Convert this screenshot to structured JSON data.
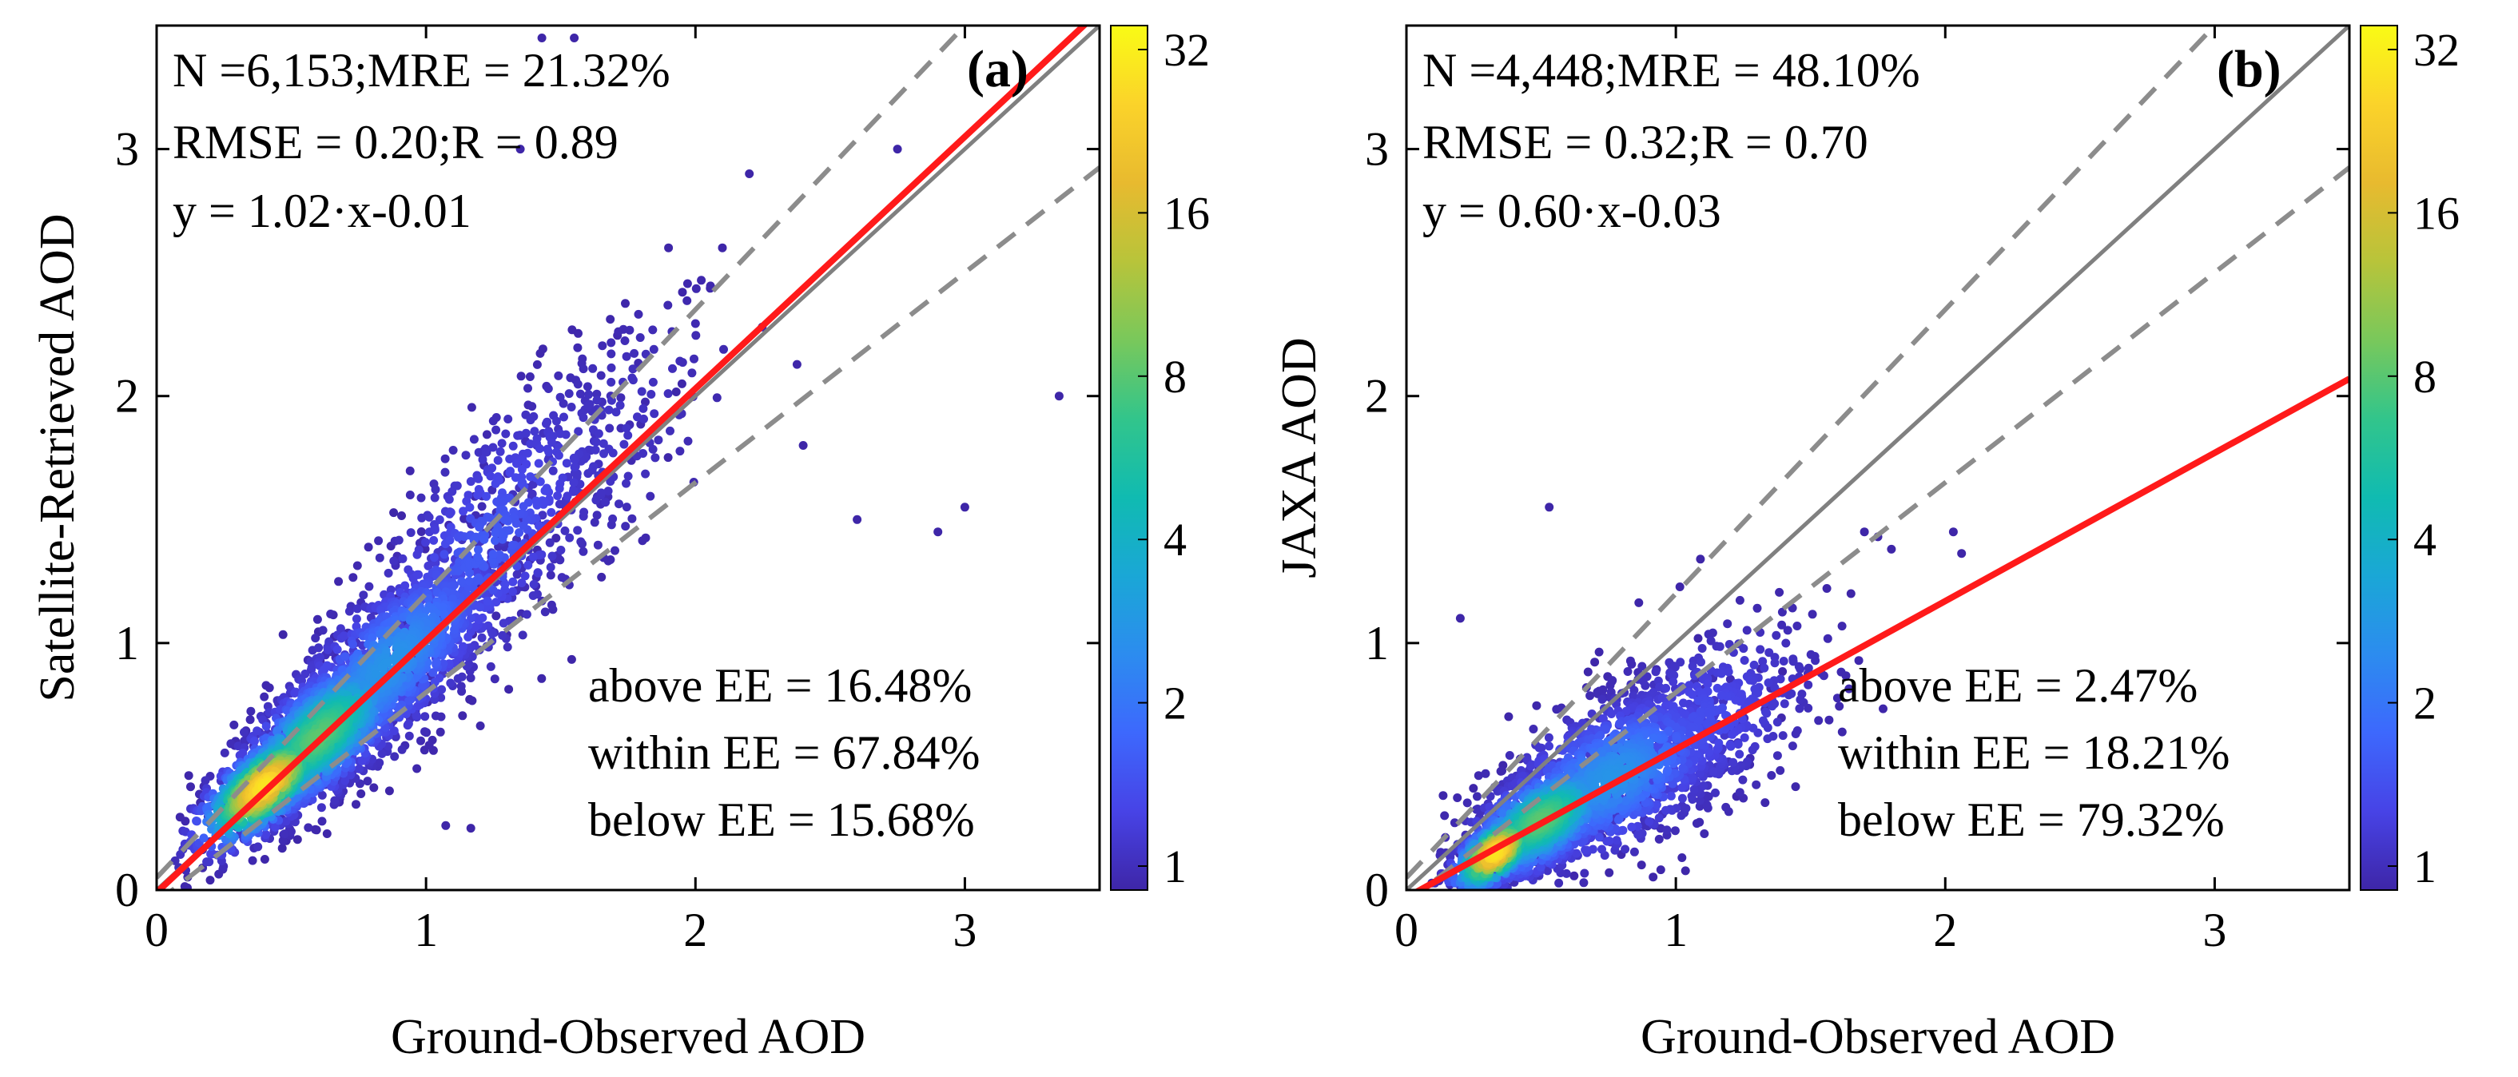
{
  "figure": {
    "description_label": "AOD validation density scatter plots"
  },
  "colors": {
    "fit_line": "#ff1a1a",
    "one_to_one": "#808080",
    "ee_lines": "#8c8c8c",
    "frame": "#000000",
    "colormap": [
      "#3e26a8",
      "#4743e6",
      "#3d68fd",
      "#2c8cef",
      "#1aa7d6",
      "#10bbb1",
      "#32c58b",
      "#79c85b",
      "#b8c43a",
      "#e8ba2f",
      "#fbd32a",
      "#f9fb15"
    ]
  },
  "chart_data": [
    {
      "type": "scatter",
      "panel_label": "(a)",
      "xlabel": "Ground-Observed AOD",
      "ylabel": "Satellite-Retrieved AOD",
      "xlim": [
        0,
        3.5
      ],
      "ylim": [
        0,
        3.5
      ],
      "xticks": [
        "0",
        "1",
        "2",
        "3"
      ],
      "yticks": [
        "0",
        "1",
        "2",
        "3"
      ],
      "stats": [
        "N =6,153;MRE = 21.32%",
        "RMSE = 0.20;R = 0.89",
        "y = 1.02·x-0.01"
      ],
      "ee_stats": [
        "above EE = 16.48%",
        "within EE = 67.84%",
        "below EE = 15.68%"
      ],
      "fit": {
        "slope": 1.02,
        "intercept": -0.01
      },
      "ee_envelope": {
        "upper": {
          "slope": 1.15,
          "intercept": 0.05
        },
        "lower": {
          "slope": 0.85,
          "intercept": -0.05
        }
      },
      "colorbar": {
        "ticks": [
          "32",
          "16",
          "8",
          "4",
          "2",
          "1"
        ]
      },
      "clusters": [
        {
          "cx": 0.4,
          "cy": 0.42,
          "sx": 0.12,
          "sy": 0.12,
          "rho": 0.7,
          "n": 900,
          "density": 0.95
        },
        {
          "cx": 0.6,
          "cy": 0.62,
          "sx": 0.16,
          "sy": 0.17,
          "rho": 0.7,
          "n": 1300,
          "density": 0.6
        },
        {
          "cx": 0.85,
          "cy": 0.9,
          "sx": 0.22,
          "sy": 0.25,
          "rho": 0.75,
          "n": 1100,
          "density": 0.3
        },
        {
          "cx": 1.2,
          "cy": 1.35,
          "sx": 0.25,
          "sy": 0.35,
          "rho": 0.7,
          "n": 600,
          "density": 0.15
        },
        {
          "cx": 1.6,
          "cy": 1.75,
          "sx": 0.28,
          "sy": 0.35,
          "rho": 0.6,
          "n": 220,
          "density": 0.05
        }
      ],
      "outliers": [
        [
          1.43,
          3.45
        ],
        [
          1.55,
          3.45
        ],
        [
          3.35,
          2.0
        ],
        [
          2.75,
          3.0
        ],
        [
          3.0,
          1.55
        ],
        [
          2.6,
          1.5
        ],
        [
          2.9,
          1.45
        ],
        [
          2.1,
          2.6
        ],
        [
          1.9,
          2.6
        ],
        [
          2.4,
          1.8
        ],
        [
          2.2,
          2.9
        ],
        [
          1.35,
          3.0
        ]
      ]
    },
    {
      "type": "scatter",
      "panel_label": "(b)",
      "xlabel": "Ground-Observed AOD",
      "ylabel": "JAXA AOD",
      "xlim": [
        0,
        3.5
      ],
      "ylim": [
        0,
        3.5
      ],
      "xticks": [
        "0",
        "1",
        "2",
        "3"
      ],
      "yticks": [
        "0",
        "1",
        "2",
        "3"
      ],
      "stats": [
        "N =4,448;MRE = 48.10%",
        "RMSE = 0.32;R = 0.70",
        "y = 0.60·x-0.03"
      ],
      "ee_stats": [
        "above EE = 2.47%",
        "within EE = 18.21%",
        "below EE = 79.32%"
      ],
      "fit": {
        "slope": 0.6,
        "intercept": -0.03
      },
      "ee_envelope": {
        "upper": {
          "slope": 1.15,
          "intercept": 0.05
        },
        "lower": {
          "slope": 0.85,
          "intercept": -0.05
        }
      },
      "colorbar": {
        "ticks": [
          "32",
          "16",
          "8",
          "4",
          "2",
          "1"
        ]
      },
      "clusters": [
        {
          "cx": 0.33,
          "cy": 0.15,
          "sx": 0.08,
          "sy": 0.08,
          "rho": 0.6,
          "n": 500,
          "density": 0.95
        },
        {
          "cx": 0.5,
          "cy": 0.28,
          "sx": 0.14,
          "sy": 0.12,
          "rho": 0.6,
          "n": 1000,
          "density": 0.6
        },
        {
          "cx": 0.75,
          "cy": 0.45,
          "sx": 0.22,
          "sy": 0.18,
          "rho": 0.55,
          "n": 1100,
          "density": 0.3
        },
        {
          "cx": 1.05,
          "cy": 0.65,
          "sx": 0.25,
          "sy": 0.22,
          "rho": 0.5,
          "n": 500,
          "density": 0.12
        }
      ],
      "outliers": [
        [
          0.53,
          1.55
        ],
        [
          1.7,
          1.45
        ],
        [
          1.75,
          1.43
        ],
        [
          1.8,
          1.38
        ],
        [
          2.03,
          1.45
        ],
        [
          0.2,
          1.1
        ],
        [
          1.65,
          1.2
        ]
      ]
    }
  ]
}
